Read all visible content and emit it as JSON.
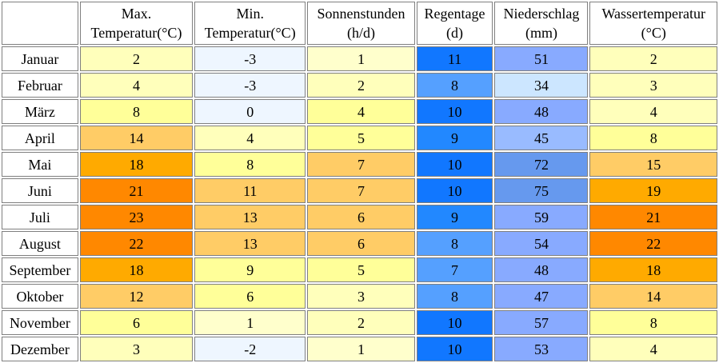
{
  "headers": [
    {
      "line1": "",
      "line2": ""
    },
    {
      "line1": "Max.",
      "line2": "Temperatur(°C)"
    },
    {
      "line1": "Min.",
      "line2": "Temperatur(°C)"
    },
    {
      "line1": "Sonnenstunden",
      "line2": "(h/d)"
    },
    {
      "line1": "Regentage",
      "line2": "(d)"
    },
    {
      "line1": "Niederschlag",
      "line2": "(mm)"
    },
    {
      "line1": "Wassertemperatur",
      "line2": "(°C)"
    }
  ],
  "rows": [
    {
      "month": "Januar",
      "cells": [
        {
          "v": "2",
          "bg": "#ffffbb"
        },
        {
          "v": "-3",
          "bg": "#eef6ff"
        },
        {
          "v": "1",
          "bg": "#ffffcc"
        },
        {
          "v": "11",
          "bg": "#1177ff"
        },
        {
          "v": "51",
          "bg": "#88aaff"
        },
        {
          "v": "2",
          "bg": "#ffffbb"
        }
      ]
    },
    {
      "month": "Februar",
      "cells": [
        {
          "v": "4",
          "bg": "#ffffbb"
        },
        {
          "v": "-3",
          "bg": "#eef6ff"
        },
        {
          "v": "2",
          "bg": "#ffffbb"
        },
        {
          "v": "8",
          "bg": "#55a0ff"
        },
        {
          "v": "34",
          "bg": "#cce6ff"
        },
        {
          "v": "3",
          "bg": "#ffffbb"
        }
      ]
    },
    {
      "month": "März",
      "cells": [
        {
          "v": "8",
          "bg": "#ffff99"
        },
        {
          "v": "0",
          "bg": "#eef6ff"
        },
        {
          "v": "4",
          "bg": "#ffff99"
        },
        {
          "v": "10",
          "bg": "#1177ff"
        },
        {
          "v": "48",
          "bg": "#88aaff"
        },
        {
          "v": "4",
          "bg": "#ffffbb"
        }
      ]
    },
    {
      "month": "April",
      "cells": [
        {
          "v": "14",
          "bg": "#ffcc66"
        },
        {
          "v": "4",
          "bg": "#ffffbb"
        },
        {
          "v": "5",
          "bg": "#ffff99"
        },
        {
          "v": "9",
          "bg": "#2288ff"
        },
        {
          "v": "45",
          "bg": "#99bbff"
        },
        {
          "v": "8",
          "bg": "#ffff99"
        }
      ]
    },
    {
      "month": "Mai",
      "cells": [
        {
          "v": "18",
          "bg": "#ffaa00"
        },
        {
          "v": "8",
          "bg": "#ffff99"
        },
        {
          "v": "7",
          "bg": "#ffcc66"
        },
        {
          "v": "10",
          "bg": "#1177ff"
        },
        {
          "v": "72",
          "bg": "#6699ee"
        },
        {
          "v": "15",
          "bg": "#ffcc66"
        }
      ]
    },
    {
      "month": "Juni",
      "cells": [
        {
          "v": "21",
          "bg": "#ff8800"
        },
        {
          "v": "11",
          "bg": "#ffcc66"
        },
        {
          "v": "7",
          "bg": "#ffcc66"
        },
        {
          "v": "10",
          "bg": "#1177ff"
        },
        {
          "v": "75",
          "bg": "#6699ee"
        },
        {
          "v": "19",
          "bg": "#ffaa00"
        }
      ]
    },
    {
      "month": "Juli",
      "cells": [
        {
          "v": "23",
          "bg": "#ff8800"
        },
        {
          "v": "13",
          "bg": "#ffcc66"
        },
        {
          "v": "6",
          "bg": "#ffcc66"
        },
        {
          "v": "9",
          "bg": "#2288ff"
        },
        {
          "v": "59",
          "bg": "#88aaff"
        },
        {
          "v": "21",
          "bg": "#ff8800"
        }
      ]
    },
    {
      "month": "August",
      "cells": [
        {
          "v": "22",
          "bg": "#ff8800"
        },
        {
          "v": "13",
          "bg": "#ffcc66"
        },
        {
          "v": "6",
          "bg": "#ffcc66"
        },
        {
          "v": "8",
          "bg": "#55a0ff"
        },
        {
          "v": "54",
          "bg": "#88aaff"
        },
        {
          "v": "22",
          "bg": "#ff8800"
        }
      ]
    },
    {
      "month": "September",
      "cells": [
        {
          "v": "18",
          "bg": "#ffaa00"
        },
        {
          "v": "9",
          "bg": "#ffff99"
        },
        {
          "v": "5",
          "bg": "#ffff99"
        },
        {
          "v": "7",
          "bg": "#55a0ff"
        },
        {
          "v": "48",
          "bg": "#88aaff"
        },
        {
          "v": "18",
          "bg": "#ffaa00"
        }
      ]
    },
    {
      "month": "Oktober",
      "cells": [
        {
          "v": "12",
          "bg": "#ffcc66"
        },
        {
          "v": "6",
          "bg": "#ffff99"
        },
        {
          "v": "3",
          "bg": "#ffffbb"
        },
        {
          "v": "8",
          "bg": "#55a0ff"
        },
        {
          "v": "47",
          "bg": "#88aaff"
        },
        {
          "v": "14",
          "bg": "#ffcc66"
        }
      ]
    },
    {
      "month": "November",
      "cells": [
        {
          "v": "6",
          "bg": "#ffff99"
        },
        {
          "v": "1",
          "bg": "#ffffcc"
        },
        {
          "v": "2",
          "bg": "#ffffbb"
        },
        {
          "v": "10",
          "bg": "#1177ff"
        },
        {
          "v": "57",
          "bg": "#88aaff"
        },
        {
          "v": "8",
          "bg": "#ffff99"
        }
      ]
    },
    {
      "month": "Dezember",
      "cells": [
        {
          "v": "3",
          "bg": "#ffffbb"
        },
        {
          "v": "-2",
          "bg": "#eef6ff"
        },
        {
          "v": "1",
          "bg": "#ffffcc"
        },
        {
          "v": "10",
          "bg": "#1177ff"
        },
        {
          "v": "53",
          "bg": "#88aaff"
        },
        {
          "v": "4",
          "bg": "#ffffbb"
        }
      ]
    }
  ]
}
